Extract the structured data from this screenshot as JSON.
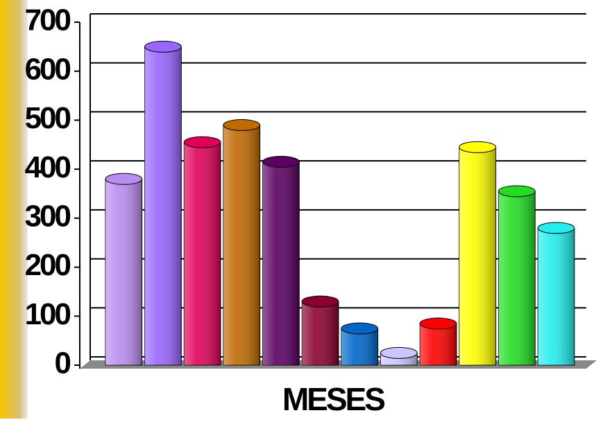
{
  "chart_data": {
    "type": "bar",
    "x_label": "MESES",
    "categories": [
      null,
      null,
      null,
      null,
      null,
      null,
      null,
      null,
      null,
      null,
      null,
      null
    ],
    "values": [
      380,
      650,
      455,
      490,
      415,
      130,
      75,
      25,
      85,
      445,
      355,
      280
    ],
    "colors": [
      "#b98cf0",
      "#9966ff",
      "#e0005a",
      "#c06a00",
      "#5a0060",
      "#8a0030",
      "#0066cc",
      "#c8c8ff",
      "#ff0000",
      "#ffff00",
      "#22dd22",
      "#22eeee"
    ],
    "ylim": [
      0,
      700
    ],
    "yticks": [
      0,
      100,
      200,
      300,
      400,
      500,
      600,
      700
    ],
    "grid": true
  }
}
